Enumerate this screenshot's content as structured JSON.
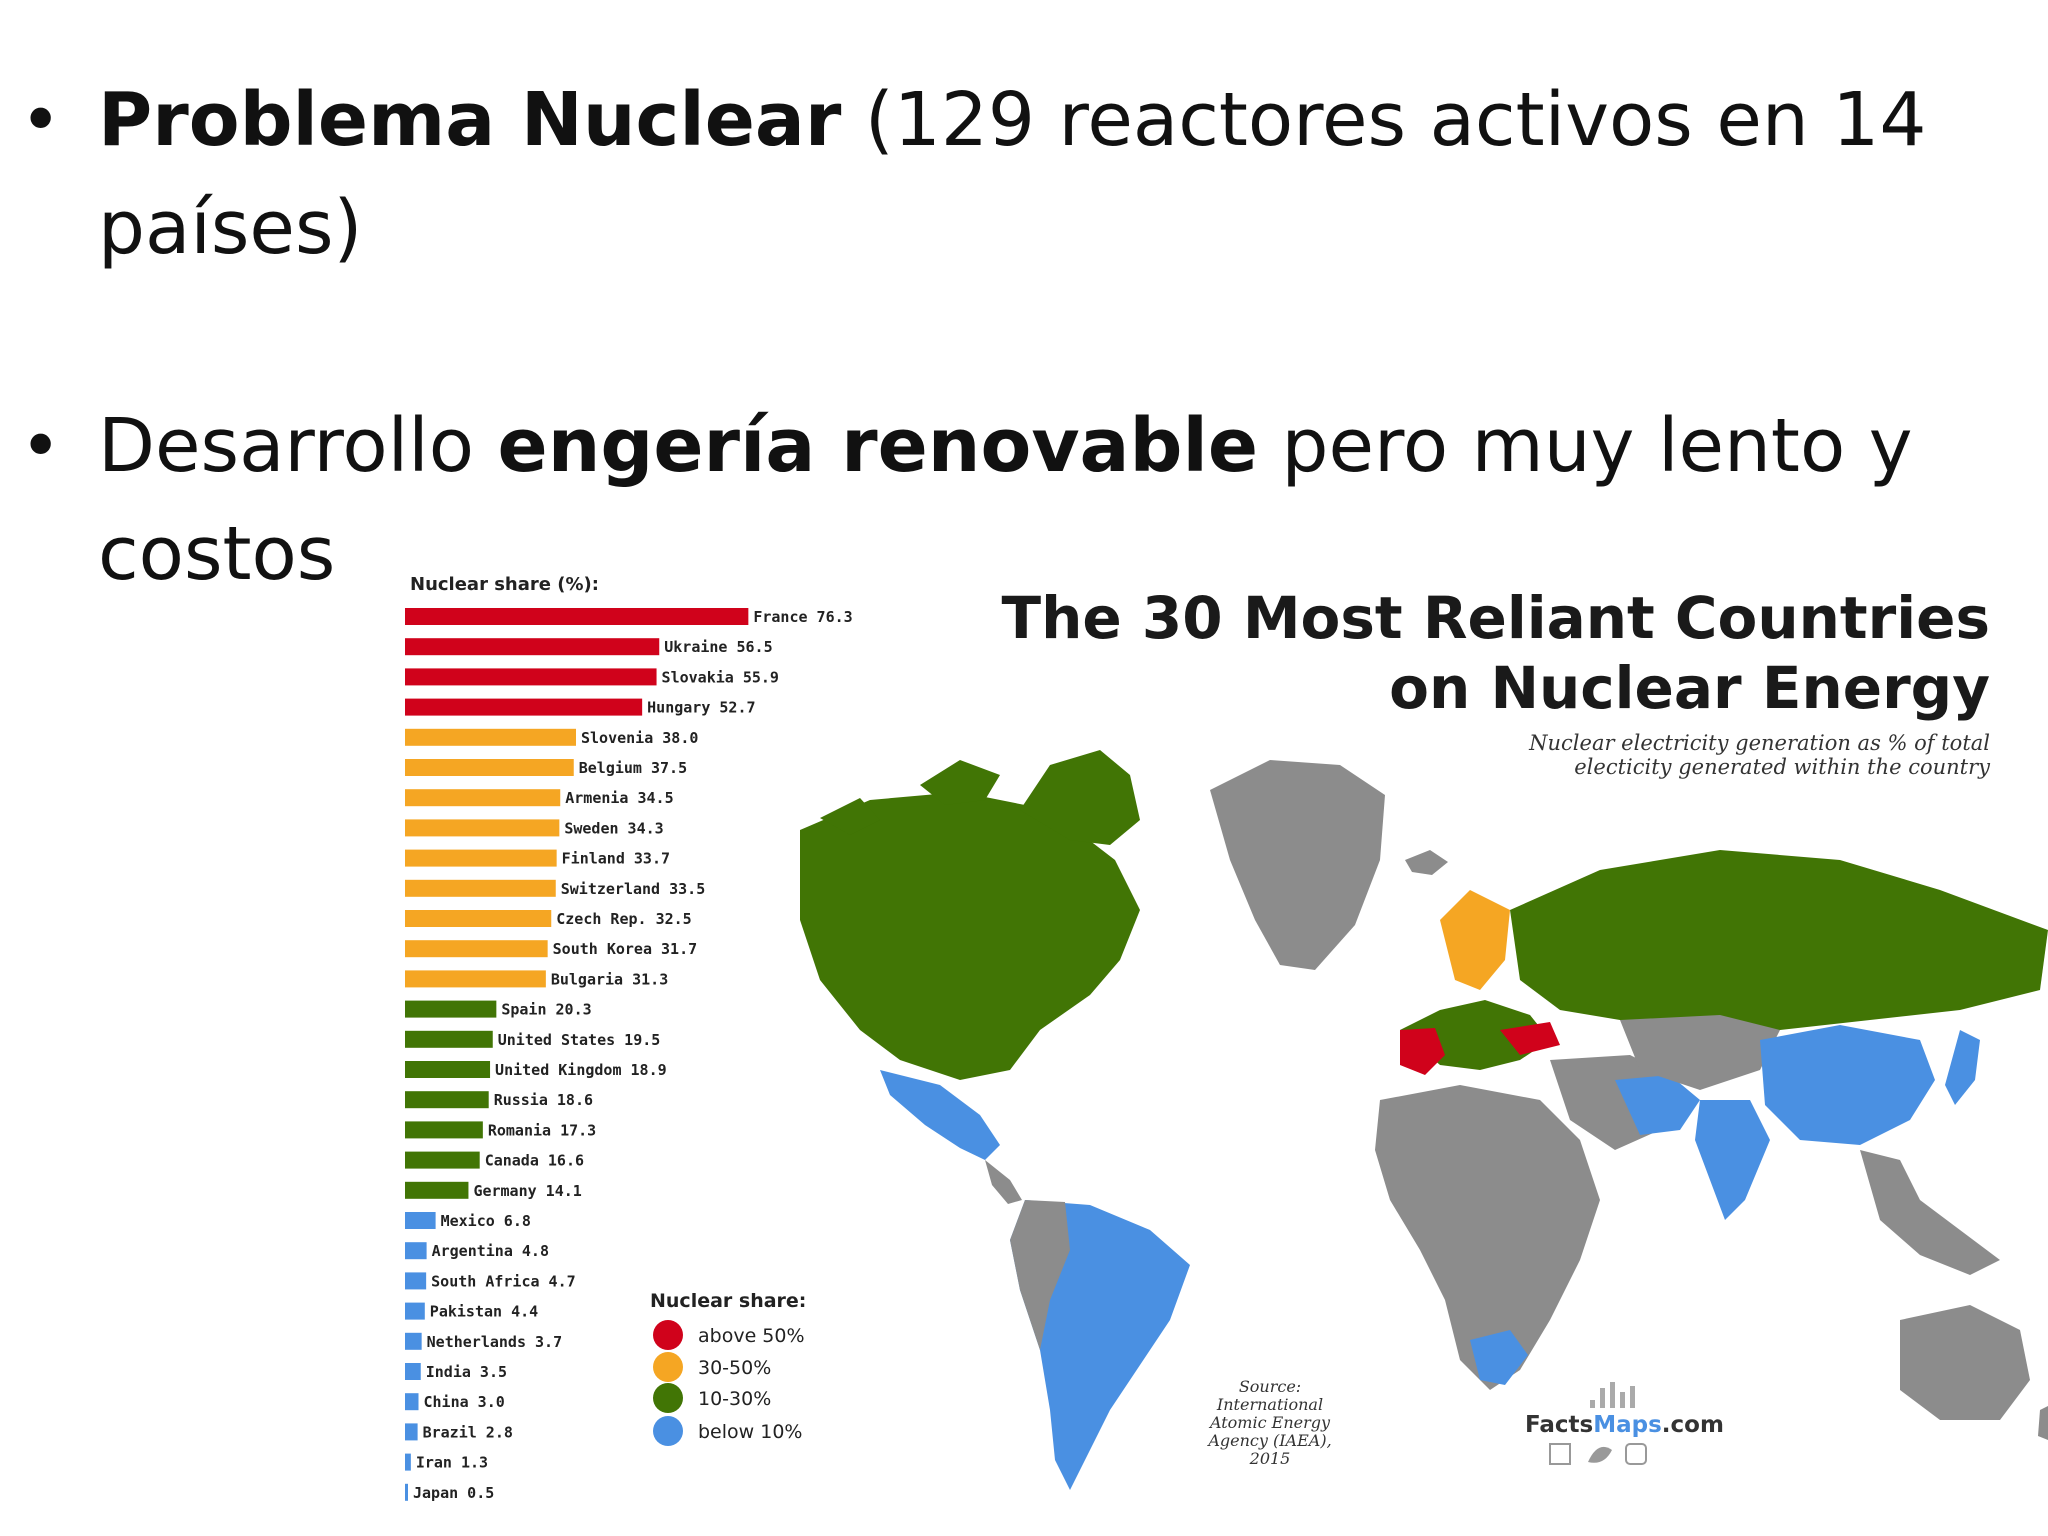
{
  "slide": {
    "bullets": [
      {
        "bold": "Problema Nuclear",
        "text": " (129 reactores activos en 14 países)"
      },
      {
        "text_before": "Desarrollo ",
        "bold": "engería renovable",
        "text_after": " pero muy lento y costos"
      }
    ]
  },
  "infographic": {
    "title_line1": "The 30 Most Reliant Countries",
    "title_line2": "on Nuclear Energy",
    "subtitle_line1": "Nuclear electricity generation as % of total",
    "subtitle_line2": "electicity generated within the country",
    "bar_header": "Nuclear share (%):",
    "source_lines": [
      "Source:",
      "International",
      "Atomic Energy",
      "Agency (IAEA),",
      "2015"
    ],
    "brand_prefix": "Facts",
    "brand_mid": "Maps",
    "brand_suffix": ".com",
    "legend_title": "Nuclear share:",
    "legend": [
      {
        "label": "above 50%",
        "color": "#d0021b"
      },
      {
        "label": "30-50%",
        "color": "#f5a623"
      },
      {
        "label": "10-30%",
        "color": "#417505"
      },
      {
        "label": "below 10%",
        "color": "#4a90e2"
      }
    ],
    "colors": {
      "land_gray": "#8c8c8c",
      "ocean": "#ffffff"
    }
  },
  "chart_data": {
    "type": "bar",
    "orientation": "horizontal",
    "ylabel": "Nuclear share (%):",
    "categories": [
      "France",
      "Ukraine",
      "Slovakia",
      "Hungary",
      "Slovenia",
      "Belgium",
      "Armenia",
      "Sweden",
      "Finland",
      "Switzerland",
      "Czech Rep.",
      "South Korea",
      "Bulgaria",
      "Spain",
      "United States",
      "United Kingdom",
      "Russia",
      "Romania",
      "Canada",
      "Germany",
      "Mexico",
      "Argentina",
      "South Africa",
      "Pakistan",
      "Netherlands",
      "India",
      "China",
      "Brazil",
      "Iran",
      "Japan"
    ],
    "values": [
      76.3,
      56.5,
      55.9,
      52.7,
      38.0,
      37.5,
      34.5,
      34.3,
      33.7,
      33.5,
      32.5,
      31.7,
      31.3,
      20.3,
      19.5,
      18.9,
      18.6,
      17.3,
      16.6,
      14.1,
      6.8,
      4.8,
      4.7,
      4.4,
      3.7,
      3.5,
      3.0,
      2.8,
      1.3,
      0.5
    ],
    "value_labels": [
      "76.3",
      "56.5",
      "55.9",
      "52.7",
      "38.0",
      "37.5",
      "34.5",
      "34.3",
      "33.7",
      "33.5",
      "32.5",
      "31.7",
      "31.3",
      "20.3",
      "19.5",
      "18.9",
      "18.6",
      "17.3",
      "16.6",
      "14.1",
      "6.8",
      "4.8",
      "4.7",
      "4.4",
      "3.7",
      "3.5",
      "3.0",
      "2.8",
      "1.3",
      "0.5"
    ],
    "color_bins": [
      {
        "min": 50,
        "color": "#d0021b"
      },
      {
        "min": 30,
        "color": "#f5a623"
      },
      {
        "min": 10,
        "color": "#417505"
      },
      {
        "min": 0,
        "color": "#4a90e2"
      }
    ],
    "xlim": [
      0,
      80
    ]
  }
}
